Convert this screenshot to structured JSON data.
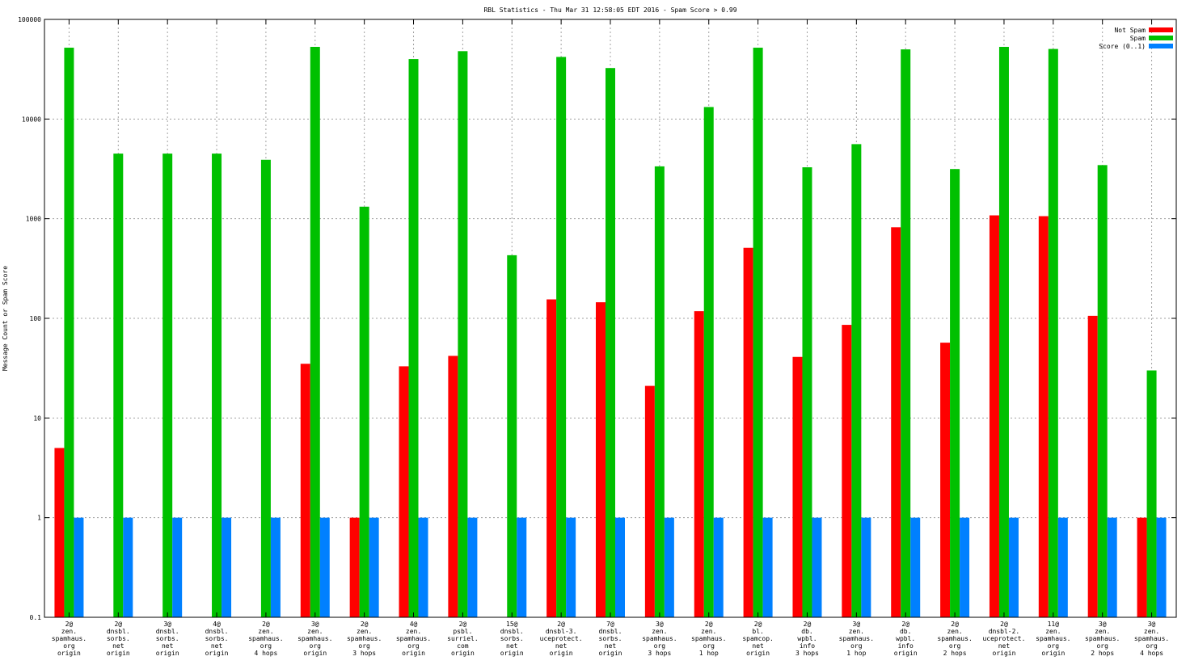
{
  "chart_data": {
    "type": "bar",
    "title": "RBL Statistics - Thu Mar 31 12:58:05 EDT 2016 - Spam Score > 0.99",
    "ylabel": "Message Count or Spam Score",
    "xlabel": "",
    "yscale": "log",
    "ylim": [
      0.1,
      100000
    ],
    "y_ticks": [
      "0.1",
      "1",
      "10",
      "100",
      "1000",
      "10000",
      "100000"
    ],
    "grid": true,
    "legend_position": "top-right",
    "categories": [
      [
        "2@",
        "zen.",
        "spamhaus.",
        "org",
        "origin"
      ],
      [
        "2@",
        "dnsbl.",
        "sorbs.",
        "net",
        "origin"
      ],
      [
        "3@",
        "dnsbl.",
        "sorbs.",
        "net",
        "origin"
      ],
      [
        "4@",
        "dnsbl.",
        "sorbs.",
        "net",
        "origin"
      ],
      [
        "2@",
        "zen.",
        "spamhaus.",
        "org",
        "4 hops"
      ],
      [
        "3@",
        "zen.",
        "spamhaus.",
        "org",
        "origin"
      ],
      [
        "2@",
        "zen.",
        "spamhaus.",
        "org",
        "3 hops"
      ],
      [
        "4@",
        "zen.",
        "spamhaus.",
        "org",
        "origin"
      ],
      [
        "2@",
        "psbl.",
        "surriel.",
        "com",
        "origin"
      ],
      [
        "15@",
        "dnsbl.",
        "sorbs.",
        "net",
        "origin"
      ],
      [
        "2@",
        "dnsbl-3.",
        "uceprotect.",
        "net",
        "origin"
      ],
      [
        "7@",
        "dnsbl.",
        "sorbs.",
        "net",
        "origin"
      ],
      [
        "3@",
        "zen.",
        "spamhaus.",
        "org",
        "3 hops"
      ],
      [
        "2@",
        "zen.",
        "spamhaus.",
        "org",
        "1 hop"
      ],
      [
        "2@",
        "bl.",
        "spamcop.",
        "net",
        "origin"
      ],
      [
        "2@",
        "db.",
        "wpbl.",
        "info",
        "3 hops"
      ],
      [
        "3@",
        "zen.",
        "spamhaus.",
        "org",
        "1 hop"
      ],
      [
        "2@",
        "db.",
        "wpbl.",
        "info",
        "origin"
      ],
      [
        "2@",
        "zen.",
        "spamhaus.",
        "org",
        "2 hops"
      ],
      [
        "2@",
        "dnsbl-2.",
        "uceprotect.",
        "net",
        "origin"
      ],
      [
        "11@",
        "zen.",
        "spamhaus.",
        "org",
        "origin"
      ],
      [
        "3@",
        "zen.",
        "spamhaus.",
        "org",
        "2 hops"
      ],
      [
        "3@",
        "zen.",
        "spamhaus.",
        "org",
        "4 hops"
      ]
    ],
    "series": [
      {
        "name": "Not Spam",
        "color": "#ff0000",
        "values": [
          5,
          0,
          0,
          0,
          0,
          35,
          1,
          33,
          42,
          0,
          155,
          145,
          21,
          118,
          510,
          41,
          86,
          820,
          57,
          1080,
          1060,
          106,
          1
        ]
      },
      {
        "name": "Spam",
        "color": "#00c000",
        "values": [
          52000,
          4500,
          4500,
          4500,
          3900,
          53000,
          1320,
          40000,
          48000,
          430,
          42000,
          32500,
          3350,
          13200,
          52000,
          3280,
          5600,
          50000,
          3150,
          53000,
          50500,
          3450,
          30
        ]
      },
      {
        "name": "Score (0..1)",
        "color": "#0080ff",
        "values": [
          1,
          1,
          1,
          1,
          1,
          1,
          1,
          1,
          1,
          1,
          1,
          1,
          1,
          1,
          1,
          1,
          1,
          1,
          1,
          1,
          1,
          1,
          1
        ]
      }
    ]
  }
}
